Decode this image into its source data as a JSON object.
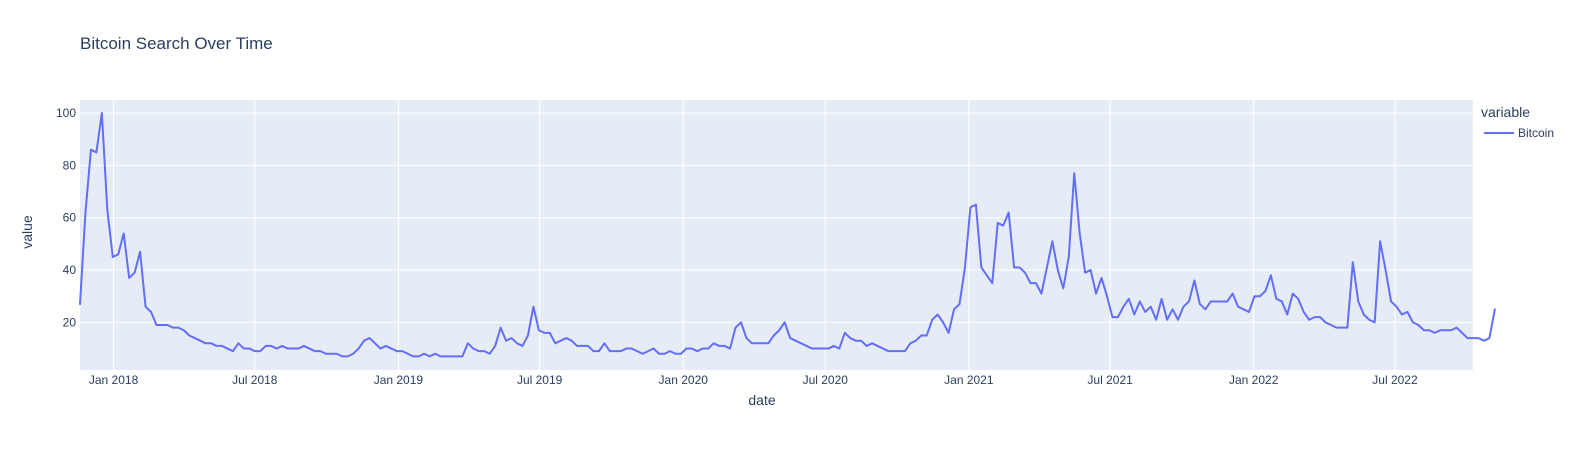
{
  "chart_data": {
    "type": "line",
    "title": "Bitcoin Search Over Time",
    "xlabel": "date",
    "ylabel": "value",
    "x_tick_labels": [
      "Jan 2018",
      "Jul 2018",
      "Jan 2019",
      "Jul 2019",
      "Jan 2020",
      "Jul 2020",
      "Jan 2021",
      "Jul 2021",
      "Jan 2022",
      "Jul 2022"
    ],
    "x_tick_dates": [
      "2018-01-01",
      "2018-07-01",
      "2019-01-01",
      "2019-07-01",
      "2020-01-01",
      "2020-07-01",
      "2021-01-01",
      "2021-07-01",
      "2022-01-01",
      "2022-07-01"
    ],
    "y_ticks": [
      20,
      40,
      60,
      80,
      100
    ],
    "xlim": [
      "2017-11-19",
      "2022-10-09"
    ],
    "ylim": [
      1.8,
      105
    ],
    "grid": true,
    "legend": {
      "title": "variable",
      "position": "right"
    },
    "series": [
      {
        "name": "Bitcoin",
        "color": "#636efa",
        "points": [
          [
            "2017-11-19",
            27
          ],
          [
            "2017-11-26",
            62
          ],
          [
            "2017-12-03",
            86
          ],
          [
            "2017-12-10",
            85
          ],
          [
            "2017-12-17",
            100
          ],
          [
            "2017-12-24",
            63
          ],
          [
            "2017-12-31",
            45
          ],
          [
            "2018-01-07",
            46
          ],
          [
            "2018-01-14",
            54
          ],
          [
            "2018-01-21",
            37
          ],
          [
            "2018-01-28",
            39
          ],
          [
            "2018-02-04",
            47
          ],
          [
            "2018-02-11",
            26
          ],
          [
            "2018-02-18",
            24
          ],
          [
            "2018-02-25",
            19
          ],
          [
            "2018-03-04",
            19
          ],
          [
            "2018-03-11",
            19
          ],
          [
            "2018-03-18",
            18
          ],
          [
            "2018-03-25",
            18
          ],
          [
            "2018-04-01",
            17
          ],
          [
            "2018-04-08",
            15
          ],
          [
            "2018-04-15",
            14
          ],
          [
            "2018-04-22",
            13
          ],
          [
            "2018-04-29",
            12
          ],
          [
            "2018-05-06",
            12
          ],
          [
            "2018-05-13",
            11
          ],
          [
            "2018-05-20",
            11
          ],
          [
            "2018-05-27",
            10
          ],
          [
            "2018-06-03",
            9
          ],
          [
            "2018-06-10",
            12
          ],
          [
            "2018-06-17",
            10
          ],
          [
            "2018-06-24",
            10
          ],
          [
            "2018-07-01",
            9
          ],
          [
            "2018-07-08",
            9
          ],
          [
            "2018-07-15",
            11
          ],
          [
            "2018-07-22",
            11
          ],
          [
            "2018-07-29",
            10
          ],
          [
            "2018-08-05",
            11
          ],
          [
            "2018-08-12",
            10
          ],
          [
            "2018-08-19",
            10
          ],
          [
            "2018-08-26",
            10
          ],
          [
            "2018-09-02",
            11
          ],
          [
            "2018-09-09",
            10
          ],
          [
            "2018-09-16",
            9
          ],
          [
            "2018-09-23",
            9
          ],
          [
            "2018-09-30",
            8
          ],
          [
            "2018-10-07",
            8
          ],
          [
            "2018-10-14",
            8
          ],
          [
            "2018-10-21",
            7
          ],
          [
            "2018-10-28",
            7
          ],
          [
            "2018-11-04",
            8
          ],
          [
            "2018-11-11",
            10
          ],
          [
            "2018-11-18",
            13
          ],
          [
            "2018-11-25",
            14
          ],
          [
            "2018-12-02",
            12
          ],
          [
            "2018-12-09",
            10
          ],
          [
            "2018-12-16",
            11
          ],
          [
            "2018-12-23",
            10
          ],
          [
            "2018-12-30",
            9
          ],
          [
            "2019-01-06",
            9
          ],
          [
            "2019-01-13",
            8
          ],
          [
            "2019-01-20",
            7
          ],
          [
            "2019-01-27",
            7
          ],
          [
            "2019-02-03",
            8
          ],
          [
            "2019-02-10",
            7
          ],
          [
            "2019-02-17",
            8
          ],
          [
            "2019-02-24",
            7
          ],
          [
            "2019-03-03",
            7
          ],
          [
            "2019-03-10",
            7
          ],
          [
            "2019-03-17",
            7
          ],
          [
            "2019-03-24",
            7
          ],
          [
            "2019-03-31",
            12
          ],
          [
            "2019-04-07",
            10
          ],
          [
            "2019-04-14",
            9
          ],
          [
            "2019-04-21",
            9
          ],
          [
            "2019-04-28",
            8
          ],
          [
            "2019-05-05",
            11
          ],
          [
            "2019-05-12",
            18
          ],
          [
            "2019-05-19",
            13
          ],
          [
            "2019-05-26",
            14
          ],
          [
            "2019-06-02",
            12
          ],
          [
            "2019-06-09",
            11
          ],
          [
            "2019-06-16",
            15
          ],
          [
            "2019-06-23",
            26
          ],
          [
            "2019-06-30",
            17
          ],
          [
            "2019-07-07",
            16
          ],
          [
            "2019-07-14",
            16
          ],
          [
            "2019-07-21",
            12
          ],
          [
            "2019-07-28",
            13
          ],
          [
            "2019-08-04",
            14
          ],
          [
            "2019-08-11",
            13
          ],
          [
            "2019-08-18",
            11
          ],
          [
            "2019-08-25",
            11
          ],
          [
            "2019-09-01",
            11
          ],
          [
            "2019-09-08",
            9
          ],
          [
            "2019-09-15",
            9
          ],
          [
            "2019-09-22",
            12
          ],
          [
            "2019-09-29",
            9
          ],
          [
            "2019-10-06",
            9
          ],
          [
            "2019-10-13",
            9
          ],
          [
            "2019-10-20",
            10
          ],
          [
            "2019-10-27",
            10
          ],
          [
            "2019-11-03",
            9
          ],
          [
            "2019-11-10",
            8
          ],
          [
            "2019-11-17",
            9
          ],
          [
            "2019-11-24",
            10
          ],
          [
            "2019-12-01",
            8
          ],
          [
            "2019-12-08",
            8
          ],
          [
            "2019-12-15",
            9
          ],
          [
            "2019-12-22",
            8
          ],
          [
            "2019-12-29",
            8
          ],
          [
            "2020-01-05",
            10
          ],
          [
            "2020-01-12",
            10
          ],
          [
            "2020-01-19",
            9
          ],
          [
            "2020-01-26",
            10
          ],
          [
            "2020-02-02",
            10
          ],
          [
            "2020-02-09",
            12
          ],
          [
            "2020-02-16",
            11
          ],
          [
            "2020-02-23",
            11
          ],
          [
            "2020-03-01",
            10
          ],
          [
            "2020-03-08",
            18
          ],
          [
            "2020-03-15",
            20
          ],
          [
            "2020-03-22",
            14
          ],
          [
            "2020-03-29",
            12
          ],
          [
            "2020-04-05",
            12
          ],
          [
            "2020-04-12",
            12
          ],
          [
            "2020-04-19",
            12
          ],
          [
            "2020-04-26",
            15
          ],
          [
            "2020-05-03",
            17
          ],
          [
            "2020-05-10",
            20
          ],
          [
            "2020-05-17",
            14
          ],
          [
            "2020-05-24",
            13
          ],
          [
            "2020-05-31",
            12
          ],
          [
            "2020-06-07",
            11
          ],
          [
            "2020-06-14",
            10
          ],
          [
            "2020-06-21",
            10
          ],
          [
            "2020-06-28",
            10
          ],
          [
            "2020-07-05",
            10
          ],
          [
            "2020-07-12",
            11
          ],
          [
            "2020-07-19",
            10
          ],
          [
            "2020-07-26",
            16
          ],
          [
            "2020-08-02",
            14
          ],
          [
            "2020-08-09",
            13
          ],
          [
            "2020-08-16",
            13
          ],
          [
            "2020-08-23",
            11
          ],
          [
            "2020-08-30",
            12
          ],
          [
            "2020-09-06",
            11
          ],
          [
            "2020-09-13",
            10
          ],
          [
            "2020-09-20",
            9
          ],
          [
            "2020-09-27",
            9
          ],
          [
            "2020-10-04",
            9
          ],
          [
            "2020-10-11",
            9
          ],
          [
            "2020-10-18",
            12
          ],
          [
            "2020-10-25",
            13
          ],
          [
            "2020-11-01",
            15
          ],
          [
            "2020-11-08",
            15
          ],
          [
            "2020-11-15",
            21
          ],
          [
            "2020-11-22",
            23
          ],
          [
            "2020-11-29",
            20
          ],
          [
            "2020-12-06",
            16
          ],
          [
            "2020-12-13",
            25
          ],
          [
            "2020-12-20",
            27
          ],
          [
            "2020-12-27",
            41
          ],
          [
            "2021-01-03",
            64
          ],
          [
            "2021-01-10",
            65
          ],
          [
            "2021-01-17",
            41
          ],
          [
            "2021-01-24",
            38
          ],
          [
            "2021-01-31",
            35
          ],
          [
            "2021-02-07",
            58
          ],
          [
            "2021-02-14",
            57
          ],
          [
            "2021-02-21",
            62
          ],
          [
            "2021-02-28",
            41
          ],
          [
            "2021-03-07",
            41
          ],
          [
            "2021-03-14",
            39
          ],
          [
            "2021-03-21",
            35
          ],
          [
            "2021-03-28",
            35
          ],
          [
            "2021-04-04",
            31
          ],
          [
            "2021-04-11",
            41
          ],
          [
            "2021-04-18",
            51
          ],
          [
            "2021-04-25",
            40
          ],
          [
            "2021-05-02",
            33
          ],
          [
            "2021-05-09",
            45
          ],
          [
            "2021-05-16",
            77
          ],
          [
            "2021-05-23",
            54
          ],
          [
            "2021-05-30",
            39
          ],
          [
            "2021-06-06",
            40
          ],
          [
            "2021-06-13",
            31
          ],
          [
            "2021-06-20",
            37
          ],
          [
            "2021-06-27",
            30
          ],
          [
            "2021-07-04",
            22
          ],
          [
            "2021-07-11",
            22
          ],
          [
            "2021-07-18",
            26
          ],
          [
            "2021-07-25",
            29
          ],
          [
            "2021-08-01",
            23
          ],
          [
            "2021-08-08",
            28
          ],
          [
            "2021-08-15",
            24
          ],
          [
            "2021-08-22",
            26
          ],
          [
            "2021-08-29",
            21
          ],
          [
            "2021-09-05",
            29
          ],
          [
            "2021-09-12",
            21
          ],
          [
            "2021-09-19",
            25
          ],
          [
            "2021-09-26",
            21
          ],
          [
            "2021-10-03",
            26
          ],
          [
            "2021-10-10",
            28
          ],
          [
            "2021-10-17",
            36
          ],
          [
            "2021-10-24",
            27
          ],
          [
            "2021-10-31",
            25
          ],
          [
            "2021-11-07",
            28
          ],
          [
            "2021-11-14",
            28
          ],
          [
            "2021-11-21",
            28
          ],
          [
            "2021-11-28",
            28
          ],
          [
            "2021-12-05",
            31
          ],
          [
            "2021-12-12",
            26
          ],
          [
            "2021-12-19",
            25
          ],
          [
            "2021-12-26",
            24
          ],
          [
            "2022-01-02",
            30
          ],
          [
            "2022-01-09",
            30
          ],
          [
            "2022-01-16",
            32
          ],
          [
            "2022-01-23",
            38
          ],
          [
            "2022-01-30",
            29
          ],
          [
            "2022-02-06",
            28
          ],
          [
            "2022-02-13",
            23
          ],
          [
            "2022-02-20",
            31
          ],
          [
            "2022-02-27",
            29
          ],
          [
            "2022-03-06",
            24
          ],
          [
            "2022-03-13",
            21
          ],
          [
            "2022-03-20",
            22
          ],
          [
            "2022-03-27",
            22
          ],
          [
            "2022-04-03",
            20
          ],
          [
            "2022-04-10",
            19
          ],
          [
            "2022-04-17",
            18
          ],
          [
            "2022-04-24",
            18
          ],
          [
            "2022-05-01",
            18
          ],
          [
            "2022-05-08",
            43
          ],
          [
            "2022-05-15",
            28
          ],
          [
            "2022-05-22",
            23
          ],
          [
            "2022-05-29",
            21
          ],
          [
            "2022-06-05",
            20
          ],
          [
            "2022-06-12",
            51
          ],
          [
            "2022-06-19",
            40
          ],
          [
            "2022-06-26",
            28
          ],
          [
            "2022-07-03",
            26
          ],
          [
            "2022-07-10",
            23
          ],
          [
            "2022-07-17",
            24
          ],
          [
            "2022-07-24",
            20
          ],
          [
            "2022-07-31",
            19
          ],
          [
            "2022-08-07",
            17
          ],
          [
            "2022-08-14",
            17
          ],
          [
            "2022-08-21",
            16
          ],
          [
            "2022-08-28",
            17
          ],
          [
            "2022-09-04",
            17
          ],
          [
            "2022-09-11",
            17
          ],
          [
            "2022-09-18",
            18
          ],
          [
            "2022-09-25",
            16
          ],
          [
            "2022-10-02",
            14
          ],
          [
            "2022-10-09",
            14
          ],
          [
            "2022-10-16",
            14
          ],
          [
            "2022-10-23",
            13
          ],
          [
            "2022-10-30",
            14
          ],
          [
            "2022-11-06",
            25
          ]
        ]
      }
    ]
  }
}
